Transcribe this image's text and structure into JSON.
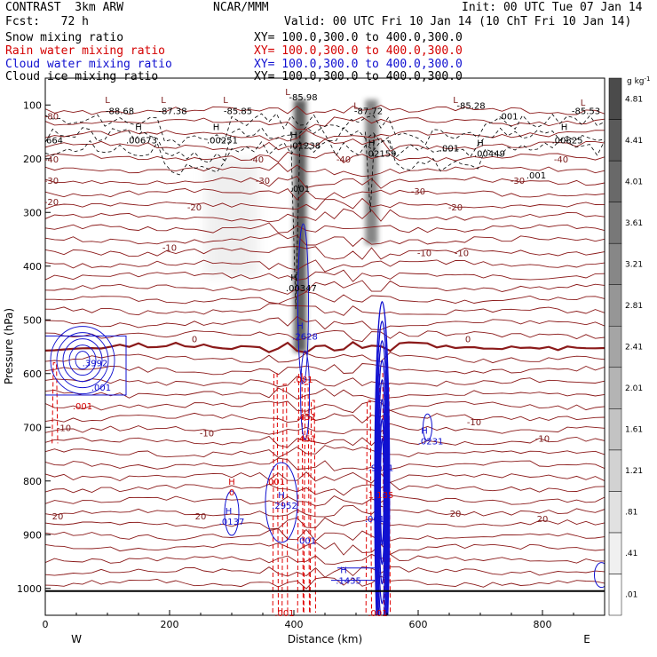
{
  "header": {
    "model": "CONTRAST  3km ARW",
    "org": "NCAR/MMM",
    "init": "Init: 00 UTC Tue 07 Jan 14",
    "fcst": "Fcst:   72 h",
    "valid": "Valid: 00 UTC Fri 10 Jan 14 (10 ChT Fri 10 Jan 14)",
    "fields": [
      {
        "name": "Snow mixing ratio",
        "xy": "XY= 100.0,300.0 to 400.0,300.0",
        "color": "#000000"
      },
      {
        "name": "Rain water mixing ratio",
        "xy": "XY= 100.0,300.0 to 400.0,300.0",
        "color": "#d40000"
      },
      {
        "name": "Cloud water mixing ratio",
        "xy": "XY= 100.0,300.0 to 400.0,300.0",
        "color": "#1010d0"
      },
      {
        "name": "Cloud ice mixing ratio",
        "xy": "XY= 100.0,300.0 to 400.0,300.0",
        "color": "#000000"
      }
    ]
  },
  "chart_data": {
    "type": "heatmap",
    "xlabel": "Distance (km)",
    "ylabel": "Pressure (hPa)",
    "xlim": [
      0,
      900
    ],
    "ylim": [
      1050,
      50
    ],
    "x_ticks": [
      0,
      200,
      400,
      600,
      800
    ],
    "y_ticks": [
      100,
      200,
      300,
      400,
      500,
      600,
      700,
      800,
      900,
      1000
    ],
    "x_end_labels": {
      "left": "W",
      "right": "E"
    },
    "colorbar": {
      "unit": "g kg",
      "unit_exp": "-1",
      "levels": [
        ".01",
        ".41",
        ".81",
        "1.21",
        "1.61",
        "2.01",
        "2.41",
        "2.81",
        "3.21",
        "3.61",
        "4.01",
        "4.41",
        "4.81"
      ],
      "colors": [
        "#ffffff",
        "#f0f0f0",
        "#e1e1e1",
        "#d2d2d2",
        "#c3c3c3",
        "#b4b4b4",
        "#a5a5a5",
        "#969696",
        "#878787",
        "#787878",
        "#696969",
        "#5a5a5a",
        "#4b4b4b"
      ]
    },
    "shaded_snow_columns": [
      {
        "x": 410,
        "p_top": 90,
        "p_bottom": 560,
        "peak": 4.8
      },
      {
        "x": 525,
        "p_top": 90,
        "p_bottom": 360,
        "peak": 3.6
      },
      {
        "x": 300,
        "p_top": 200,
        "p_bottom": 420,
        "peak": 0.8
      }
    ],
    "temperature_contours": [
      {
        "label": "-80",
        "p": 120
      },
      {
        "label": "-40",
        "p": 215
      },
      {
        "label": "-30",
        "p": 262
      },
      {
        "label": "-20",
        "p": 320
      },
      {
        "label": "-10",
        "p": 395
      },
      {
        "label": "0",
        "p": 545
      },
      {
        "label": "-10",
        "p": 700
      },
      {
        "label": "20",
        "p": 855
      }
    ],
    "temperature_labels": [
      {
        "text": "-80",
        "x": 10,
        "p": 120
      },
      {
        "text": "-40",
        "x": 10,
        "p": 200
      },
      {
        "text": "-40",
        "x": 340,
        "p": 200
      },
      {
        "text": "-40",
        "x": 480,
        "p": 200
      },
      {
        "text": "-40",
        "x": 830,
        "p": 200
      },
      {
        "text": "-30",
        "x": 10,
        "p": 240
      },
      {
        "text": "-30",
        "x": 350,
        "p": 240
      },
      {
        "text": "-30",
        "x": 600,
        "p": 260
      },
      {
        "text": "-30",
        "x": 760,
        "p": 240
      },
      {
        "text": "-20",
        "x": 10,
        "p": 280
      },
      {
        "text": "-20",
        "x": 240,
        "p": 290
      },
      {
        "text": "-20",
        "x": 660,
        "p": 290
      },
      {
        "text": "-10",
        "x": 200,
        "p": 365
      },
      {
        "text": "-10",
        "x": 610,
        "p": 375
      },
      {
        "text": "-10",
        "x": 670,
        "p": 375
      },
      {
        "text": "0",
        "x": 240,
        "p": 535
      },
      {
        "text": "0",
        "x": 680,
        "p": 535
      },
      {
        "text": "-10",
        "x": 30,
        "p": 700
      },
      {
        "text": "-10",
        "x": 260,
        "p": 710
      },
      {
        "text": "-10",
        "x": 690,
        "p": 690
      },
      {
        "text": "-10",
        "x": 800,
        "p": 720
      },
      {
        "text": "20",
        "x": 20,
        "p": 865
      },
      {
        "text": "20",
        "x": 250,
        "p": 865
      },
      {
        "text": "20",
        "x": 660,
        "p": 860
      },
      {
        "text": "20",
        "x": 800,
        "p": 870
      }
    ],
    "extremum_labels": [
      {
        "text": "L",
        "x": 100,
        "p": 90,
        "color": "#7a1a1a"
      },
      {
        "text": "-88.68",
        "x": 120,
        "p": 110,
        "color": "#000000"
      },
      {
        "text": "L",
        "x": 190,
        "p": 90,
        "color": "#7a1a1a"
      },
      {
        "text": "-87.38",
        "x": 205,
        "p": 110,
        "color": "#000000"
      },
      {
        "text": "L",
        "x": 290,
        "p": 90,
        "color": "#7a1a1a"
      },
      {
        "text": "-85.85",
        "x": 310,
        "p": 110,
        "color": "#000000"
      },
      {
        "text": "L",
        "x": 390,
        "p": 75,
        "color": "#7a1a1a"
      },
      {
        "text": "-85.98",
        "x": 415,
        "p": 85,
        "color": "#000000"
      },
      {
        "text": "L",
        "x": 500,
        "p": 100,
        "color": "#7a1a1a"
      },
      {
        "text": "-87.72",
        "x": 520,
        "p": 110,
        "color": "#000000"
      },
      {
        "text": "L",
        "x": 660,
        "p": 90,
        "color": "#7a1a1a"
      },
      {
        "text": "-85.28",
        "x": 685,
        "p": 100,
        "color": "#000000"
      },
      {
        "text": "L",
        "x": 865,
        "p": 95,
        "color": "#7a1a1a"
      },
      {
        "text": ".001",
        "x": 745,
        "p": 120,
        "color": "#000000"
      },
      {
        "text": "-85.53",
        "x": 870,
        "p": 110,
        "color": "#000000"
      },
      {
        "text": "H",
        "x": 150,
        "p": 140,
        "color": "#000000"
      },
      {
        "text": ".00673",
        "x": 155,
        "p": 165,
        "color": "#000000"
      },
      {
        "text": "664",
        "x": 15,
        "p": 165,
        "color": "#000000"
      },
      {
        "text": "H",
        "x": 275,
        "p": 140,
        "color": "#000000"
      },
      {
        "text": ".00251",
        "x": 285,
        "p": 165,
        "color": "#000000"
      },
      {
        "text": "H",
        "x": 400,
        "p": 155,
        "color": "#000000"
      },
      {
        "text": ".01238",
        "x": 418,
        "p": 175,
        "color": "#000000"
      },
      {
        "text": "H",
        "x": 525,
        "p": 170,
        "color": "#000000"
      },
      {
        "text": ".02159",
        "x": 540,
        "p": 190,
        "color": "#000000"
      },
      {
        "text": ".001",
        "x": 650,
        "p": 180,
        "color": "#000000"
      },
      {
        "text": "H",
        "x": 700,
        "p": 170,
        "color": "#000000"
      },
      {
        "text": ".00449",
        "x": 715,
        "p": 190,
        "color": "#000000"
      },
      {
        "text": "H",
        "x": 835,
        "p": 140,
        "color": "#000000"
      },
      {
        "text": ".00825",
        "x": 840,
        "p": 165,
        "color": "#000000"
      },
      {
        "text": ".001",
        "x": 790,
        "p": 230,
        "color": "#000000"
      },
      {
        "text": ".001",
        "x": 410,
        "p": 255,
        "color": "#000000"
      },
      {
        "text": "H",
        "x": 400,
        "p": 420,
        "color": "#000000"
      },
      {
        "text": ".00347",
        "x": 412,
        "p": 440,
        "color": "#000000"
      },
      {
        "text": "H",
        "x": 410,
        "p": 510,
        "color": "#1010d0"
      },
      {
        "text": ".2628",
        "x": 418,
        "p": 530,
        "color": "#1010d0"
      },
      {
        "text": ".3992",
        "x": 80,
        "p": 580,
        "color": "#1010d0"
      },
      {
        "text": ".001",
        "x": 90,
        "p": 625,
        "color": "#1010d0"
      },
      {
        "text": ".001",
        "x": 60,
        "p": 660,
        "color": "#d40000"
      },
      {
        "text": ".001",
        "x": 415,
        "p": 610,
        "color": "#d40000"
      },
      {
        "text": ".451",
        "x": 420,
        "p": 680,
        "color": "#d40000"
      },
      {
        "text": ".451",
        "x": 420,
        "p": 720,
        "color": "#d40000"
      },
      {
        "text": "H",
        "x": 610,
        "p": 705,
        "color": "#1010d0"
      },
      {
        "text": ".0231",
        "x": 620,
        "p": 725,
        "color": "#1010d0"
      },
      {
        "text": "H",
        "x": 535,
        "p": 755,
        "color": "#1010d0"
      },
      {
        "text": ".9041",
        "x": 540,
        "p": 775,
        "color": "#1010d0"
      },
      {
        "text": "H",
        "x": 300,
        "p": 800,
        "color": "#d40000"
      },
      {
        "text": "0",
        "x": 300,
        "p": 820,
        "color": "#d40000"
      },
      {
        "text": ".001",
        "x": 370,
        "p": 800,
        "color": "#d40000"
      },
      {
        "text": "H",
        "x": 380,
        "p": 825,
        "color": "#1010d0"
      },
      {
        "text": ".2952",
        "x": 385,
        "p": 845,
        "color": "#1010d0"
      },
      {
        "text": "H",
        "x": 295,
        "p": 855,
        "color": "#1010d0"
      },
      {
        "text": ".0137",
        "x": 300,
        "p": 875,
        "color": "#1010d0"
      },
      {
        "text": "1.135",
        "x": 540,
        "p": 825,
        "color": "#d40000"
      },
      {
        "text": ".001",
        "x": 420,
        "p": 910,
        "color": "#1010d0"
      },
      {
        "text": ".001",
        "x": 530,
        "p": 870,
        "color": "#1010d0"
      },
      {
        "text": "H",
        "x": 480,
        "p": 965,
        "color": "#1010d0"
      },
      {
        "text": ".1435",
        "x": 488,
        "p": 985,
        "color": "#1010d0"
      },
      {
        "text": ".001",
        "x": 385,
        "p": 1045,
        "color": "#d40000"
      },
      {
        "text": ".001",
        "x": 535,
        "p": 1045,
        "color": "#d40000"
      }
    ]
  }
}
